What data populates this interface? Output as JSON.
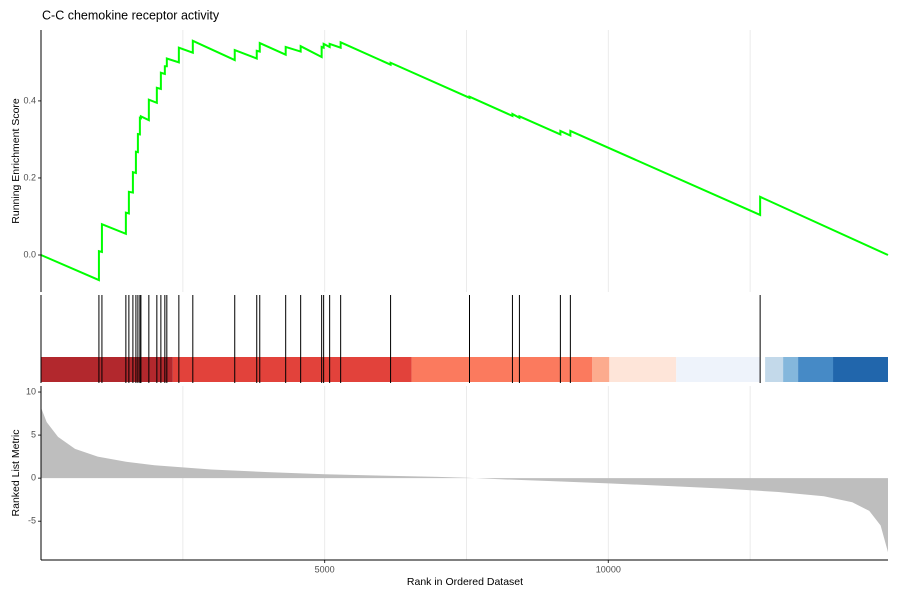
{
  "chart_data": [
    {
      "type": "line",
      "title": "C-C chemokine receptor activity",
      "ylabel": "Running Enrichment Score",
      "color": "#00ff00",
      "xlim": [
        0,
        14930
      ],
      "ylim": [
        -0.096,
        0.584
      ],
      "yticks": [
        {
          "value": 0,
          "label": "0.0"
        },
        {
          "value": 0.2,
          "label": "0.2"
        },
        {
          "value": 0.4,
          "label": "0.4"
        }
      ],
      "xgrid": [
        2500,
        5000,
        7500,
        10000,
        12500
      ],
      "x": [
        0,
        1021,
        1021,
        1074,
        1074,
        1496,
        1496,
        1549,
        1549,
        1620,
        1620,
        1673,
        1673,
        1708,
        1708,
        1743,
        1743,
        1761,
        1761,
        1901,
        1901,
        2042,
        2042,
        2113,
        2113,
        2183,
        2183,
        2218,
        2218,
        2430,
        2430,
        2676,
        2676,
        3415,
        3415,
        3803,
        3803,
        3856,
        3856,
        4313,
        4313,
        4577,
        4577,
        4947,
        4947,
        4982,
        4982,
        5088,
        5088,
        5282,
        5282,
        6162,
        6162,
        7553,
        7553,
        8310,
        8310,
        8433,
        8433,
        9155,
        9155,
        9331,
        9331,
        12676,
        12676,
        14930
      ],
      "values": [
        0,
        -0.065,
        0.01,
        0.008,
        0.08,
        0.055,
        0.11,
        0.108,
        0.164,
        0.162,
        0.215,
        0.213,
        0.268,
        0.267,
        0.314,
        0.313,
        0.356,
        0.355,
        0.36,
        0.35,
        0.403,
        0.395,
        0.434,
        0.431,
        0.473,
        0.47,
        0.49,
        0.49,
        0.51,
        0.5,
        0.538,
        0.525,
        0.556,
        0.506,
        0.532,
        0.51,
        0.53,
        0.528,
        0.55,
        0.52,
        0.54,
        0.528,
        0.542,
        0.514,
        0.54,
        0.538,
        0.548,
        0.54,
        0.548,
        0.538,
        0.552,
        0.494,
        0.499,
        0.408,
        0.411,
        0.361,
        0.366,
        0.356,
        0.36,
        0.313,
        0.322,
        0.31,
        0.322,
        0.104,
        0.151,
        0
      ]
    },
    {
      "type": "rug",
      "color": "#000000",
      "xlim": [
        0,
        14930
      ],
      "x": [
        1021,
        1074,
        1496,
        1549,
        1620,
        1673,
        1708,
        1743,
        1761,
        1901,
        2042,
        2113,
        2183,
        2218,
        2430,
        2676,
        3415,
        3803,
        3856,
        4313,
        4577,
        4947,
        4982,
        5088,
        5282,
        6162,
        7553,
        8310,
        8433,
        9155,
        9331,
        12676
      ],
      "band_edges": [
        0,
        2324,
        6532,
        9718,
        10018,
        11197,
        12676,
        12764,
        13081,
        13345,
        13961,
        14930
      ],
      "band_colors": [
        "#b2282d",
        "#e2423b",
        "#fb7a5e",
        "#fcab8e",
        "#fee5d9",
        "#eef3fb",
        "#ffffff",
        "#c3d9ea",
        "#84b7dc",
        "#468ac6",
        "#2166ac"
      ]
    },
    {
      "type": "area",
      "ylabel": "Ranked List Metric",
      "xlabel": "Rank in Ordered Dataset",
      "color": "#bebebe",
      "xlim": [
        0,
        14930
      ],
      "ylim": [
        -9.5,
        10.7
      ],
      "yticks": [
        -5,
        0,
        5,
        10
      ],
      "xticks": [
        5000,
        10000
      ],
      "xgrid": [
        2500,
        5000,
        7500,
        10000,
        12500
      ],
      "x": [
        0,
        100,
        300,
        600,
        1000,
        1500,
        2000,
        3000,
        4000,
        5000,
        6000,
        7000,
        7500,
        8000,
        9000,
        10000,
        11000,
        12000,
        13000,
        13800,
        14300,
        14600,
        14800,
        14930
      ],
      "values": [
        8.2,
        6.5,
        4.8,
        3.4,
        2.5,
        1.9,
        1.5,
        1.0,
        0.7,
        0.45,
        0.3,
        0.15,
        0.05,
        -0.1,
        -0.35,
        -0.6,
        -0.9,
        -1.2,
        -1.6,
        -2.1,
        -2.8,
        -3.8,
        -5.5,
        -8.6
      ]
    }
  ]
}
